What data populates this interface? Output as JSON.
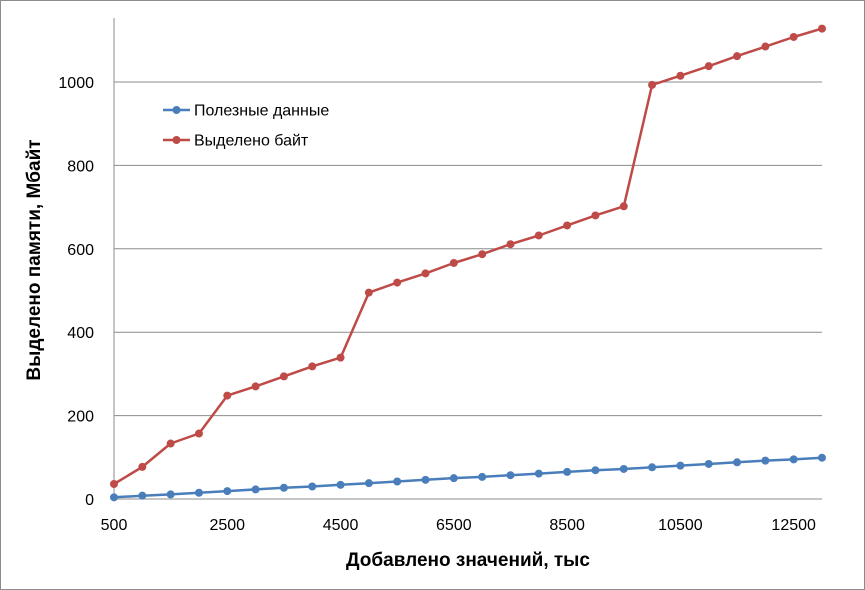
{
  "chart_data": {
    "type": "line",
    "xlabel": "Добавлено значений, тыс",
    "ylabel": "Выделено памяти, Мбайт",
    "xlim": [
      500,
      13000
    ],
    "ylim": [
      0,
      1150
    ],
    "x_ticks": [
      500,
      2500,
      4500,
      6500,
      8500,
      10500,
      12500
    ],
    "y_ticks": [
      0,
      200,
      400,
      600,
      800,
      1000
    ],
    "grid": "horizontal",
    "legend_position": "top-left",
    "x": [
      500,
      1000,
      1500,
      2000,
      2500,
      3000,
      3500,
      4000,
      4500,
      5000,
      5500,
      6000,
      6500,
      7000,
      7500,
      8000,
      8500,
      9000,
      9500,
      10000,
      10500,
      11000,
      11500,
      12000,
      12500,
      13000
    ],
    "series": [
      {
        "name": "Полезные данные",
        "color": "#4a7ebb",
        "values": [
          4,
          8,
          11,
          15,
          19,
          23,
          27,
          30,
          34,
          38,
          42,
          46,
          50,
          53,
          57,
          61,
          65,
          69,
          72,
          76,
          80,
          84,
          88,
          92,
          95,
          99
        ]
      },
      {
        "name": "Выделено байт",
        "color": "#be4b48",
        "values": [
          36,
          77,
          133,
          157,
          248,
          270,
          294,
          318,
          339,
          495,
          519,
          541,
          566,
          587,
          611,
          632,
          656,
          680,
          702,
          993,
          1015,
          1038,
          1062,
          1085,
          1108,
          1128
        ]
      }
    ]
  }
}
